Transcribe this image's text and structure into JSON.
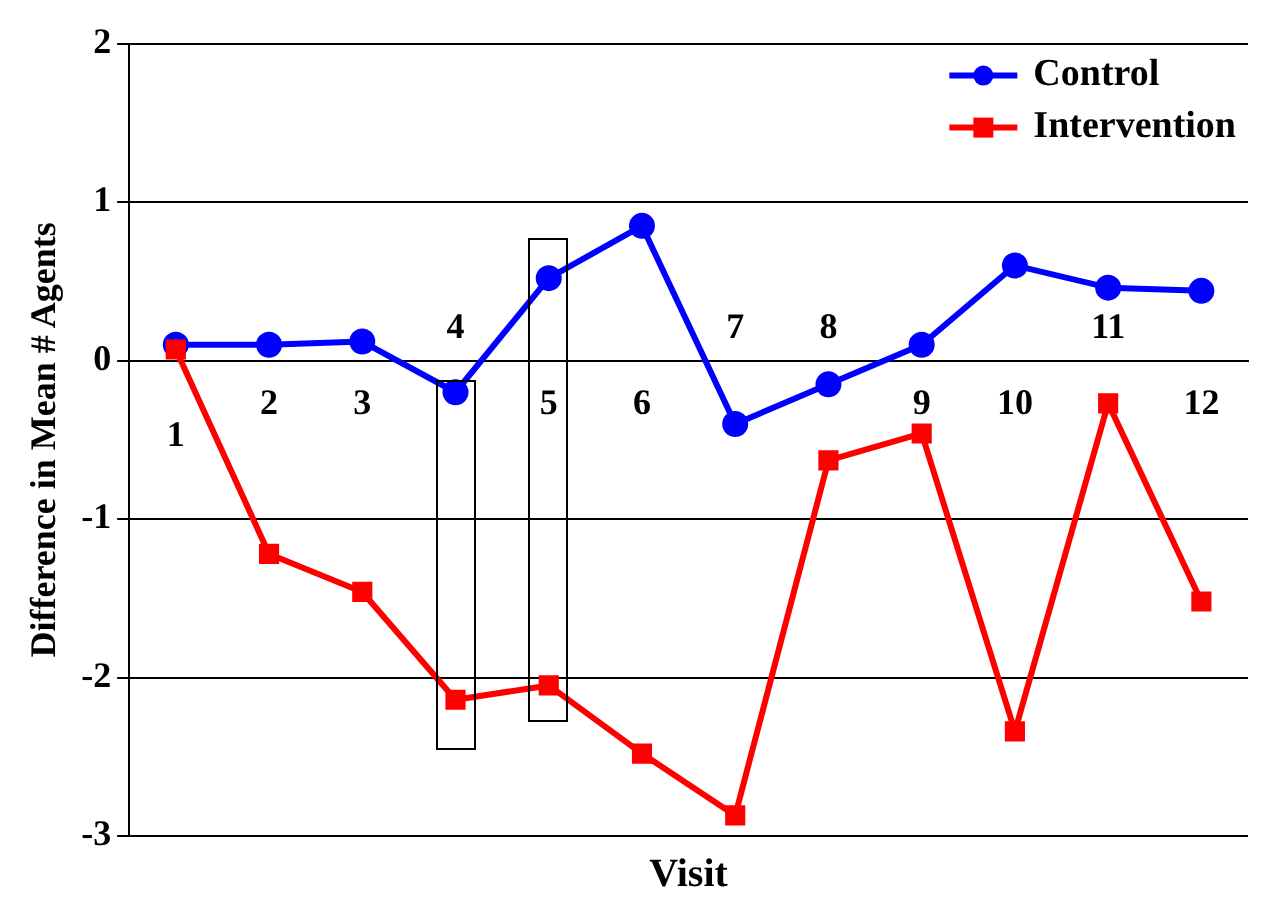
{
  "chart_data": {
    "type": "line",
    "xlabel": "Visit",
    "ylabel": "Difference in Mean # Agents",
    "categories": [
      "1",
      "2",
      "3",
      "4",
      "5",
      "6",
      "7",
      "8",
      "9",
      "10",
      "11",
      "12"
    ],
    "series": [
      {
        "name": "Control",
        "color": "#0000ff",
        "marker": "circle",
        "values": [
          0.1,
          0.1,
          0.12,
          -0.2,
          0.52,
          0.85,
          -0.4,
          -0.15,
          0.1,
          0.6,
          0.46,
          0.44
        ]
      },
      {
        "name": "Intervention",
        "color": "#ff0000",
        "marker": "square",
        "values": [
          0.07,
          -1.22,
          -1.46,
          -2.14,
          -2.05,
          -2.48,
          -2.87,
          -0.63,
          -0.46,
          -2.34,
          -0.27,
          -1.52
        ]
      }
    ],
    "ylim": [
      -3,
      2
    ],
    "yticks": [
      -3,
      -2,
      -1,
      0,
      1,
      2
    ],
    "grid": "y",
    "legend": "top right",
    "line_style": "solid"
  }
}
